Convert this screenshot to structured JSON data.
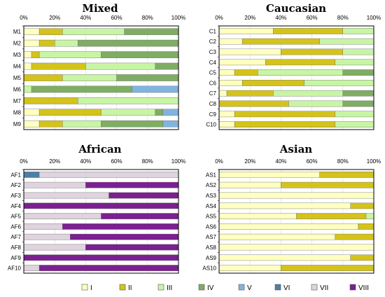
{
  "palette": {
    "I": "#ffffc0",
    "II": "#d4c31a",
    "III": "#c8f5a4",
    "IV": "#7fad64",
    "V": "#80b4e0",
    "VI": "#4b7fa8",
    "VII": "#ded3de",
    "VIII": "#7b1f91"
  },
  "legend": [
    "I",
    "II",
    "III",
    "IV",
    "V",
    "VI",
    "VII",
    "VIII"
  ],
  "chart_data": [
    {
      "type": "bar",
      "orientation": "horizontal",
      "stacked": true,
      "title": "Mixed",
      "xlim": [
        0,
        100
      ],
      "xticks": [
        "0%",
        "20%",
        "40%",
        "60%",
        "80%",
        "100%"
      ],
      "categories": [
        "M1",
        "M2",
        "M3",
        "M4",
        "M5",
        "M6",
        "M7",
        "M8",
        "M9"
      ],
      "series": [
        {
          "name": "I",
          "values": [
            10,
            10,
            5,
            5,
            0,
            0,
            0,
            10,
            10
          ]
        },
        {
          "name": "II",
          "values": [
            15,
            10,
            5,
            35,
            25,
            0,
            35,
            40,
            15
          ]
        },
        {
          "name": "III",
          "values": [
            40,
            15,
            40,
            45,
            35,
            5,
            65,
            35,
            25
          ]
        },
        {
          "name": "IV",
          "values": [
            35,
            65,
            50,
            15,
            40,
            65,
            0,
            5,
            40
          ]
        },
        {
          "name": "V",
          "values": [
            0,
            0,
            0,
            0,
            0,
            30,
            0,
            10,
            10
          ]
        },
        {
          "name": "VI",
          "values": [
            0,
            0,
            0,
            0,
            0,
            0,
            0,
            0,
            0
          ]
        },
        {
          "name": "VII",
          "values": [
            0,
            0,
            0,
            0,
            0,
            0,
            0,
            0,
            0
          ]
        },
        {
          "name": "VIII",
          "values": [
            0,
            0,
            0,
            0,
            0,
            0,
            0,
            0,
            0
          ]
        }
      ]
    },
    {
      "type": "bar",
      "orientation": "horizontal",
      "stacked": true,
      "title": "Caucasian",
      "xlim": [
        0,
        100
      ],
      "xticks": [
        "0%",
        "20%",
        "40%",
        "60%",
        "80%",
        "100%"
      ],
      "categories": [
        "C1",
        "C2",
        "C3",
        "C4",
        "C5",
        "C6",
        "C7",
        "C8",
        "C9",
        "C10"
      ],
      "series": [
        {
          "name": "I",
          "values": [
            35,
            15,
            40,
            30,
            10,
            15,
            5,
            0,
            10,
            10
          ]
        },
        {
          "name": "II",
          "values": [
            45,
            50,
            40,
            45,
            15,
            40,
            30,
            45,
            65,
            65
          ]
        },
        {
          "name": "III",
          "values": [
            20,
            35,
            20,
            25,
            55,
            45,
            45,
            35,
            25,
            25
          ]
        },
        {
          "name": "IV",
          "values": [
            0,
            0,
            0,
            0,
            20,
            0,
            20,
            20,
            0,
            0
          ]
        },
        {
          "name": "V",
          "values": [
            0,
            0,
            0,
            0,
            0,
            0,
            0,
            0,
            0,
            0
          ]
        },
        {
          "name": "VI",
          "values": [
            0,
            0,
            0,
            0,
            0,
            0,
            0,
            0,
            0,
            0
          ]
        },
        {
          "name": "VII",
          "values": [
            0,
            0,
            0,
            0,
            0,
            0,
            0,
            0,
            0,
            0
          ]
        },
        {
          "name": "VIII",
          "values": [
            0,
            0,
            0,
            0,
            0,
            0,
            0,
            0,
            0,
            0
          ]
        }
      ]
    },
    {
      "type": "bar",
      "orientation": "horizontal",
      "stacked": true,
      "title": "African",
      "xlim": [
        0,
        100
      ],
      "xticks": [
        "0%",
        "20%",
        "40%",
        "60%",
        "80%",
        "100%"
      ],
      "categories": [
        "AF1",
        "AF2",
        "AF3",
        "AF4",
        "AF5",
        "AF6",
        "AF7",
        "AF8",
        "AF9",
        "AF10"
      ],
      "series": [
        {
          "name": "I",
          "values": [
            0,
            0,
            0,
            0,
            0,
            0,
            0,
            0,
            0,
            0
          ]
        },
        {
          "name": "II",
          "values": [
            0,
            0,
            0,
            0,
            0,
            0,
            0,
            0,
            0,
            0
          ]
        },
        {
          "name": "III",
          "values": [
            0,
            0,
            0,
            0,
            0,
            0,
            0,
            0,
            0,
            0
          ]
        },
        {
          "name": "IV",
          "values": [
            0,
            0,
            0,
            0,
            0,
            0,
            0,
            0,
            0,
            0
          ]
        },
        {
          "name": "V",
          "values": [
            0,
            0,
            0,
            0,
            0,
            0,
            0,
            0,
            0,
            0
          ]
        },
        {
          "name": "VI",
          "values": [
            10,
            0,
            0,
            0,
            0,
            0,
            0,
            0,
            0,
            0
          ]
        },
        {
          "name": "VII",
          "values": [
            90,
            40,
            55,
            0,
            50,
            25,
            30,
            40,
            0,
            10
          ]
        },
        {
          "name": "VIII",
          "values": [
            0,
            60,
            45,
            100,
            50,
            75,
            70,
            60,
            100,
            90
          ]
        }
      ]
    },
    {
      "type": "bar",
      "orientation": "horizontal",
      "stacked": true,
      "title": "Asian",
      "xlim": [
        0,
        100
      ],
      "xticks": [
        "0%",
        "20%",
        "40%",
        "60%",
        "80%",
        "100%"
      ],
      "categories": [
        "AS1",
        "AS2",
        "AS3",
        "AS4",
        "AS5",
        "AS6",
        "AS7",
        "AS8",
        "AS9",
        "AS10"
      ],
      "series": [
        {
          "name": "I",
          "values": [
            65,
            40,
            100,
            85,
            50,
            90,
            75,
            100,
            85,
            40
          ]
        },
        {
          "name": "II",
          "values": [
            35,
            60,
            0,
            15,
            45,
            10,
            25,
            0,
            15,
            60
          ]
        },
        {
          "name": "III",
          "values": [
            0,
            0,
            0,
            0,
            5,
            0,
            0,
            0,
            0,
            0
          ]
        },
        {
          "name": "IV",
          "values": [
            0,
            0,
            0,
            0,
            0,
            0,
            0,
            0,
            0,
            0
          ]
        },
        {
          "name": "V",
          "values": [
            0,
            0,
            0,
            0,
            0,
            0,
            0,
            0,
            0,
            0
          ]
        },
        {
          "name": "VI",
          "values": [
            0,
            0,
            0,
            0,
            0,
            0,
            0,
            0,
            0,
            0
          ]
        },
        {
          "name": "VII",
          "values": [
            0,
            0,
            0,
            0,
            0,
            0,
            0,
            0,
            0,
            0
          ]
        },
        {
          "name": "VIII",
          "values": [
            0,
            0,
            0,
            0,
            0,
            0,
            0,
            0,
            0,
            0
          ]
        }
      ]
    }
  ]
}
